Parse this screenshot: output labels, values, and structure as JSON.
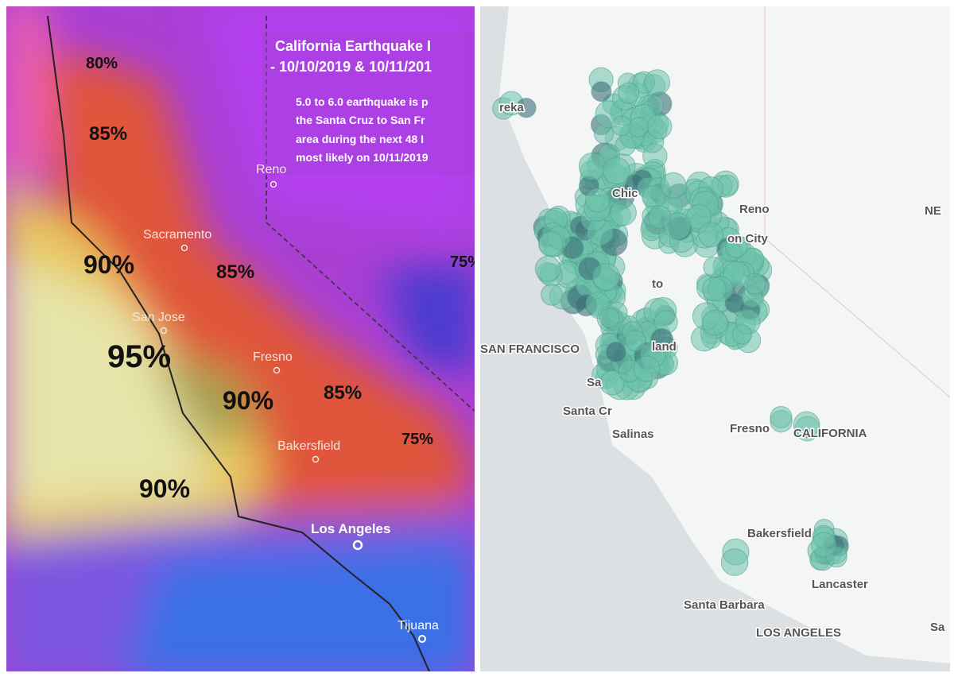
{
  "left_map": {
    "title": [
      "California Earthquake I",
      "- 10/10/2019 & 10/11/201"
    ],
    "body": [
      "5.0 to 6.0 earthquake is p",
      "the Santa Cruz to San Fr",
      "area during the next 48 I",
      "most likely on 10/11/2019"
    ],
    "probabilities": [
      "80%",
      "85%",
      "90%",
      "85%",
      "75%",
      "95%",
      "90%",
      "85%",
      "75%",
      "90%"
    ],
    "cities": [
      "Reno",
      "Sacramento",
      "San Jose",
      "Fresno",
      "Bakersfield",
      "Los Angeles",
      "Tijuana"
    ]
  },
  "right_map": {
    "places": [
      "reka",
      "Chic",
      "Reno",
      "on City",
      "NE",
      "SAN FRANCISCO",
      "land",
      "to",
      "Sa",
      "Santa Cr",
      "Salinas",
      "Fresno",
      "CALIFORNIA",
      "Bakersfield",
      "Lancaster",
      "Santa Barbara",
      "LOS ANGELES",
      "Sa"
    ]
  }
}
